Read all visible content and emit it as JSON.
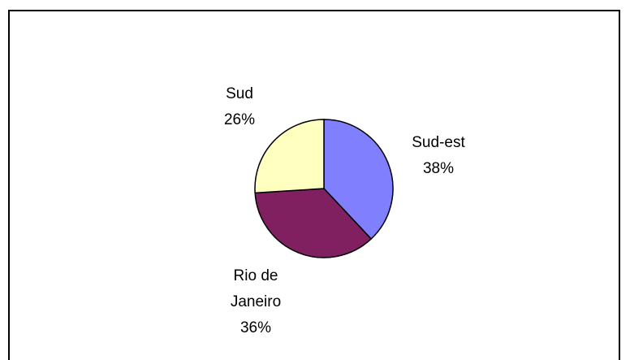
{
  "chart_data": {
    "type": "pie",
    "categories": [
      "Sud-est",
      "Rio de Janeiro",
      "Sud"
    ],
    "values": [
      38,
      36,
      26
    ],
    "value_labels": [
      "38%",
      "36%",
      "26%"
    ],
    "colors": [
      "#8080ff",
      "#802060",
      "#ffffc0"
    ]
  }
}
